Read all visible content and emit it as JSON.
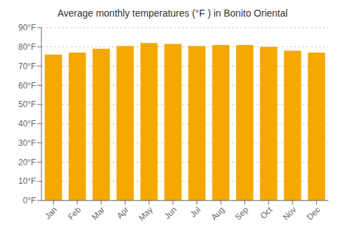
{
  "chart_data": {
    "type": "bar",
    "title": "Average monthly temperatures (°F ) in Bonito Oriental",
    "categories": [
      "Jan",
      "Feb",
      "Mar",
      "Apr",
      "May",
      "Jun",
      "Jul",
      "Aug",
      "Sep",
      "Oct",
      "Nov",
      "Dec"
    ],
    "values": [
      76,
      77,
      79,
      80.5,
      82,
      81.5,
      80.5,
      81,
      81,
      80,
      78,
      77
    ],
    "color": "#F5A800",
    "ylim": [
      0,
      90
    ],
    "yticks": [
      {
        "value": 0,
        "label": "0°F"
      },
      {
        "value": 10,
        "label": "10°F"
      },
      {
        "value": 20,
        "label": "20°F"
      },
      {
        "value": 30,
        "label": "30°F"
      },
      {
        "value": 40,
        "label": "40°F"
      },
      {
        "value": 50,
        "label": "50°F"
      },
      {
        "value": 60,
        "label": "60°F"
      },
      {
        "value": 70,
        "label": "70°F"
      },
      {
        "value": 80,
        "label": "80°F"
      },
      {
        "value": 90,
        "label": "90°F"
      }
    ],
    "grid": true
  }
}
